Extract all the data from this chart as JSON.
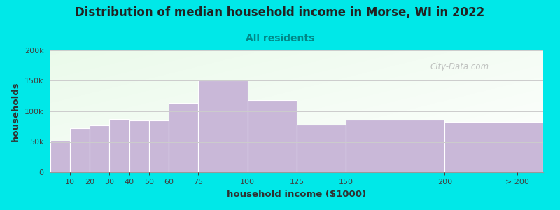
{
  "title": "Distribution of median household income in Morse, WI in 2022",
  "subtitle": "All residents",
  "xlabel": "household income ($1000)",
  "ylabel": "households",
  "bar_color": "#c9b8d8",
  "outer_background": "#00e8e8",
  "ylim": [
    0,
    200000
  ],
  "yticks": [
    0,
    50000,
    100000,
    150000,
    200000
  ],
  "ytick_labels": [
    "0",
    "50k",
    "100k",
    "150k",
    "200k"
  ],
  "edges": [
    0,
    10,
    20,
    30,
    40,
    50,
    60,
    75,
    100,
    125,
    150,
    200,
    250
  ],
  "values": [
    52000,
    72000,
    77000,
    87000,
    85000,
    85000,
    114000,
    151000,
    118000,
    78000,
    86000,
    83000
  ],
  "xtick_positions": [
    10,
    20,
    30,
    40,
    50,
    60,
    75,
    100,
    125,
    150,
    200,
    237
  ],
  "xtick_labels": [
    "10",
    "20",
    "30",
    "40",
    "50",
    "60",
    "75",
    "100",
    "125",
    "150",
    "200",
    "> 200"
  ],
  "watermark": "City-Data.com",
  "title_fontsize": 12,
  "subtitle_fontsize": 10,
  "subtitle_color": "#008888",
  "axis_label_fontsize": 9.5,
  "tick_fontsize": 8,
  "gradient_colors": [
    "#e6f5e0",
    "#f5fbf0",
    "#fafff8",
    "#ffffff"
  ],
  "bg_color_left": "#dff0d4",
  "bg_color_right": "#f0f8f0"
}
